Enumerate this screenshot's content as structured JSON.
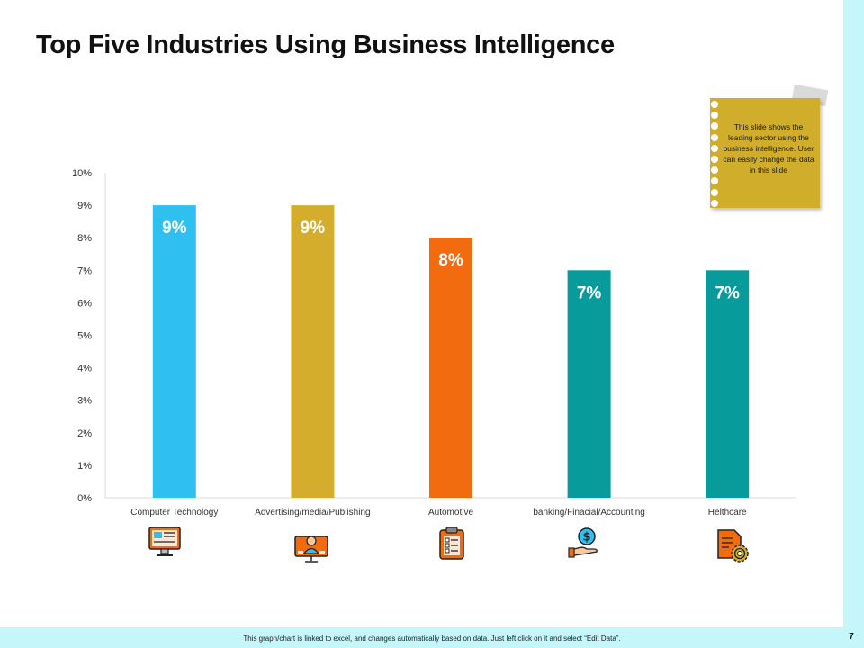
{
  "slide": {
    "title": "Top Five Industries Using Business Intelligence",
    "note_text": "This slide shows the leading sector using the business intelligence. User can easily change the data in this slide",
    "footer_text": "This graph/chart is linked to excel, and changes automatically based on data. Just left click on it and select “Edit Data”.",
    "page_number": "7"
  },
  "chart_data": {
    "type": "bar",
    "categories": [
      "Computer Technology",
      "Advertising/media/Publishing",
      "Automotive",
      "banking/Finacial/Accounting",
      "Helthcare"
    ],
    "values": [
      9,
      9,
      8,
      7,
      7
    ],
    "data_labels": [
      "9%",
      "9%",
      "8%",
      "7%",
      "7%"
    ],
    "colors": [
      "#2fbff0",
      "#d3ad2b",
      "#f26b0f",
      "#079b9b",
      "#079b9b"
    ],
    "ylim": [
      0,
      10
    ],
    "yticks": [
      "0%",
      "1%",
      "2%",
      "3%",
      "4%",
      "5%",
      "6%",
      "7%",
      "8%",
      "9%",
      "10%"
    ],
    "grid": false,
    "legend": "none"
  },
  "icons": [
    "computer-monitor-icon",
    "presenter-screen-icon",
    "clipboard-checklist-icon",
    "dollar-hand-icon",
    "document-gear-icon"
  ]
}
